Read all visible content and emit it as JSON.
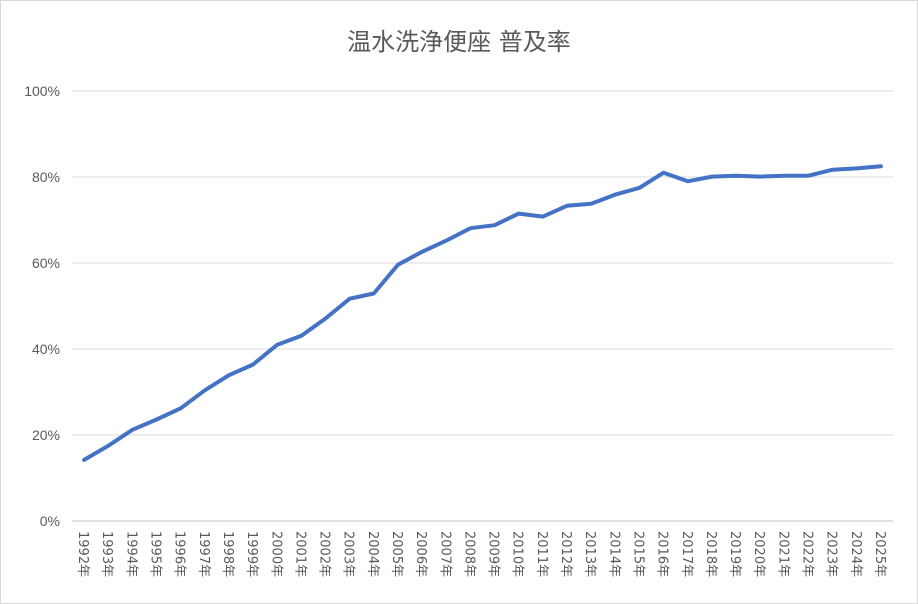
{
  "chart_data": {
    "type": "line",
    "title": "温水洗浄便座 普及率",
    "xlabel": "",
    "ylabel": "",
    "ylim": [
      0,
      100
    ],
    "y_ticks": [
      "0%",
      "20%",
      "40%",
      "60%",
      "80%",
      "100%"
    ],
    "grid": true,
    "legend": "none",
    "series_color": "#4472c4",
    "categories": [
      "1992年",
      "1993年",
      "1994年",
      "1995年",
      "1996年",
      "1997年",
      "1998年",
      "1999年",
      "2000年",
      "2001年",
      "2002年",
      "2003年",
      "2004年",
      "2005年",
      "2006年",
      "2007年",
      "2008年",
      "2009年",
      "2010年",
      "2011年",
      "2012年",
      "2013年",
      "2014年",
      "2015年",
      "2016年",
      "2017年",
      "2018年",
      "2019年",
      "2020年",
      "2021年",
      "2022年",
      "2023年",
      "2024年",
      "2025年"
    ],
    "series": [
      {
        "values": [
          14.2,
          17.5,
          21.2,
          23.6,
          26.2,
          30.4,
          33.9,
          36.4,
          41.0,
          43.1,
          47.1,
          51.7,
          52.9,
          59.6,
          62.6,
          65.2,
          68.1,
          68.8,
          71.5,
          70.8,
          73.3,
          73.8,
          75.9,
          77.5,
          81.0,
          79.0,
          80.1,
          80.3,
          80.1,
          80.3,
          80.3,
          81.7,
          82.0,
          82.5
        ]
      }
    ]
  }
}
